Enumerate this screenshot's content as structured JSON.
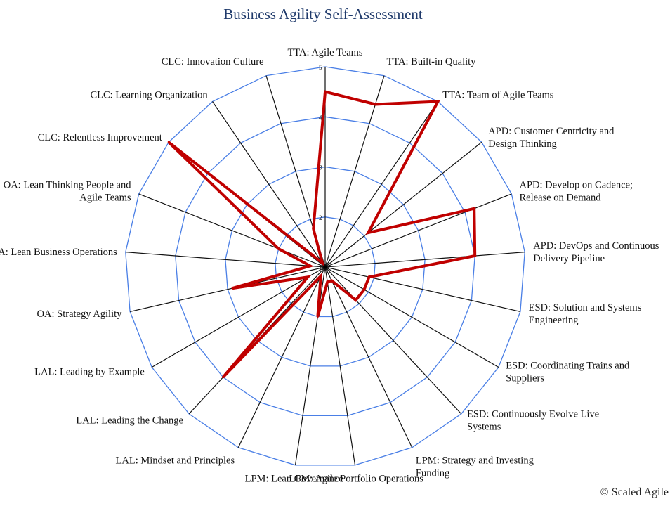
{
  "title": "Business Agility Self-Assessment",
  "copyright": "© Scaled Agile",
  "colors": {
    "grid": "#4a7fe6",
    "spoke": "#111111",
    "series": "#c00000",
    "title": "#1f3a6b"
  },
  "chart_data": {
    "type": "radar",
    "title": "Business Agility Self-Assessment",
    "scale": {
      "min": 1,
      "max": 5,
      "ticks": [
        "1",
        "2",
        "3",
        "4",
        "5"
      ]
    },
    "grid": true,
    "categories": [
      "TTA: Agile Teams",
      "TTA: Built-in Quality",
      "TTA: Team of Agile Teams",
      "APD: Customer Centricity and Design Thinking",
      "APD: Develop on Cadence; Release on Demand",
      "APD: DevOps and Continuous Delivery Pipeline",
      "ESD: Solution and Systems Engineering",
      "ESD: Coordinating Trains and Suppliers",
      "ESD: Continuously Evolve Live Systems",
      "LPM: Strategy and Investing Funding",
      "LPM: Agile Portfolio Operations",
      "LPM: Lean Governance",
      "LAL: Mindset and Principles",
      "LAL: Leading the Change",
      "LAL: Leading by Example",
      "OA: Strategy Agility",
      "OA: Lean Business Operations",
      "OA: Lean Thinking People and Agile Teams",
      "CLC: Relentless Improvement",
      "CLC: Learning Organization",
      "CLC: Innovation Culture"
    ],
    "series": [
      {
        "values": [
          4.5,
          4.4,
          5.0,
          2.1,
          4.2,
          4.0,
          1.9,
          1.9,
          1.9,
          1.3,
          1.3,
          2.0,
          1.2,
          4.0,
          1.4,
          2.9,
          1.3,
          2.0,
          5.0,
          1.1,
          1.8
        ]
      }
    ]
  }
}
